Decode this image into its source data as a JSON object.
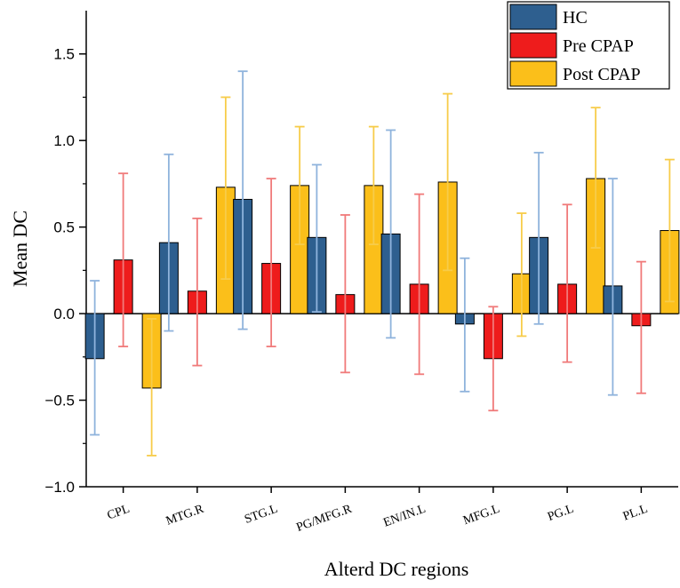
{
  "chart_data": {
    "type": "bar",
    "title": "",
    "xlabel": "Alterd DC regions",
    "ylabel": "Mean DC",
    "ylim": [
      -1.0,
      1.75
    ],
    "yticks": [
      -1.0,
      -0.5,
      0.0,
      0.5,
      1.0,
      1.5
    ],
    "ytick_labels": [
      "−1.0",
      "−0.5",
      "0.0",
      "0.5",
      "1.0",
      "1.5"
    ],
    "legend_position": "top-right",
    "categories": [
      "CPL",
      "MTG.R",
      "STG.L",
      "PG/MFG.R",
      "EN/IN.L",
      "MFG.L",
      "PG.L",
      "PL.L"
    ],
    "series": [
      {
        "name": "HC",
        "color": "#2e5f8f",
        "error_color": "#8fb3dc",
        "values": [
          -0.26,
          0.41,
          0.66,
          0.44,
          0.46,
          -0.06,
          0.44,
          0.16
        ],
        "error_low": [
          -0.7,
          -0.1,
          -0.09,
          0.01,
          -0.14,
          -0.45,
          -0.06,
          -0.47
        ],
        "error_high": [
          0.19,
          0.92,
          1.4,
          0.86,
          1.06,
          0.32,
          0.93,
          0.78
        ]
      },
      {
        "name": "Pre CPAP",
        "color": "#ee1c1c",
        "error_color": "#f07a7a",
        "values": [
          0.31,
          0.13,
          0.29,
          0.11,
          0.17,
          -0.26,
          0.17,
          -0.07
        ],
        "error_low": [
          -0.19,
          -0.3,
          -0.19,
          -0.34,
          -0.35,
          -0.56,
          -0.28,
          -0.46
        ],
        "error_high": [
          0.81,
          0.55,
          0.78,
          0.57,
          0.69,
          0.04,
          0.63,
          0.3
        ]
      },
      {
        "name": "Post CPAP",
        "color": "#fbbf1a",
        "error_color": "#f7cc4a",
        "values": [
          -0.43,
          0.73,
          0.74,
          0.74,
          0.76,
          0.23,
          0.78,
          0.48
        ],
        "error_low": [
          -0.82,
          0.2,
          0.4,
          0.4,
          0.25,
          -0.13,
          0.38,
          0.07
        ],
        "error_high": [
          -0.03,
          1.25,
          1.08,
          1.08,
          1.27,
          0.58,
          1.19,
          0.89
        ]
      }
    ]
  }
}
